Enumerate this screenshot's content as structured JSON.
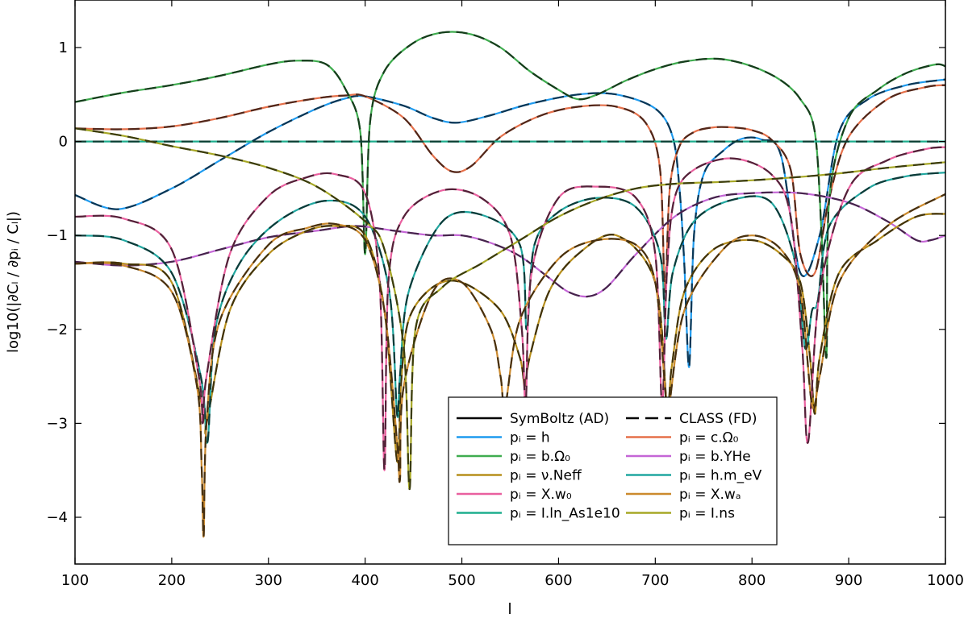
{
  "chart_data": {
    "type": "line",
    "title": "",
    "xlabel": "l",
    "ylabel": "log10(|∂Cₗ / ∂pᵢ / Cₗ|)",
    "xlim": [
      100,
      1000
    ],
    "ylim": [
      -4.5,
      1.5
    ],
    "xticks": [
      100,
      200,
      300,
      400,
      500,
      600,
      700,
      800,
      900,
      1000
    ],
    "yticks": [
      1,
      0,
      -1,
      -2,
      -3,
      -4
    ],
    "ytick_labels": [
      "1",
      "0",
      "−1",
      "−2",
      "−3",
      "−4"
    ],
    "grid": false,
    "legend_position": "lower right",
    "legend": {
      "styles": [
        {
          "label": "SymBoltz (AD)",
          "linestyle": "solid",
          "color": "#000000"
        },
        {
          "label": "CLASS (FD)",
          "linestyle": "dashed",
          "color": "#000000"
        }
      ],
      "entries": [
        {
          "label": "pᵢ = h",
          "color": "#1f9bef"
        },
        {
          "label": "pᵢ = c.Ω₀",
          "color": "#e5704a"
        },
        {
          "label": "pᵢ = b.Ω₀",
          "color": "#3fac4f"
        },
        {
          "label": "pᵢ = b.YHe",
          "color": "#c466d6"
        },
        {
          "label": "pᵢ = ν.Neff",
          "color": "#b78f1c"
        },
        {
          "label": "pᵢ = h.m_eV",
          "color": "#21a7a0"
        },
        {
          "label": "pᵢ = X.w₀",
          "color": "#e9609f"
        },
        {
          "label": "pᵢ = X.wₐ",
          "color": "#cc8a2e"
        },
        {
          "label": "pᵢ = I.ln_As1e10",
          "color": "#1eae8e"
        },
        {
          "label": "pᵢ = I.ns",
          "color": "#a7a826"
        }
      ]
    },
    "series": [
      {
        "name": "pᵢ = h",
        "color": "#1f9bef",
        "x": [
          100,
          145,
          200,
          250,
          300,
          350,
          380,
          400,
          440,
          470,
          495,
          530,
          570,
          620,
          660,
          700,
          718,
          725,
          730,
          735,
          740,
          750,
          770,
          790,
          810,
          830,
          850,
          870,
          890,
          920,
          960,
          1000
        ],
        "y": [
          -0.57,
          -0.72,
          -0.5,
          -0.2,
          0.1,
          0.35,
          0.46,
          0.48,
          0.38,
          0.25,
          0.2,
          0.28,
          0.4,
          0.5,
          0.5,
          0.35,
          0.05,
          -0.5,
          -1.3,
          -2.4,
          -1.0,
          -0.35,
          -0.1,
          0.03,
          0.02,
          -0.15,
          -1.4,
          -1.0,
          0.1,
          0.45,
          0.6,
          0.66
        ]
      },
      {
        "name": "pᵢ = c.Ω₀",
        "color": "#e5704a",
        "x": [
          100,
          150,
          200,
          250,
          300,
          350,
          380,
          400,
          440,
          470,
          490,
          510,
          540,
          580,
          620,
          660,
          690,
          705,
          710,
          715,
          725,
          740,
          760,
          780,
          800,
          820,
          840,
          850,
          865,
          880,
          900,
          940,
          980,
          1000
        ],
        "y": [
          0.14,
          0.13,
          0.16,
          0.25,
          0.37,
          0.46,
          0.49,
          0.48,
          0.25,
          -0.15,
          -0.32,
          -0.26,
          0.05,
          0.27,
          0.37,
          0.37,
          0.2,
          -0.3,
          -1.6,
          -0.5,
          -0.05,
          0.1,
          0.15,
          0.15,
          0.12,
          0.02,
          -0.3,
          -1.2,
          -1.4,
          -0.6,
          0.05,
          0.45,
          0.58,
          0.6
        ]
      },
      {
        "name": "pᵢ = b.Ω₀",
        "color": "#3fac4f",
        "x": [
          100,
          150,
          200,
          250,
          300,
          330,
          360,
          380,
          395,
          400,
          405,
          420,
          450,
          480,
          510,
          540,
          570,
          600,
          620,
          640,
          670,
          700,
          730,
          765,
          800,
          830,
          850,
          865,
          872,
          877,
          880,
          900,
          930,
          960,
          990,
          1000
        ],
        "y": [
          0.42,
          0.52,
          0.6,
          0.7,
          0.82,
          0.86,
          0.82,
          0.55,
          0.1,
          -1.2,
          0.2,
          0.75,
          1.05,
          1.16,
          1.14,
          1.0,
          0.75,
          0.55,
          0.45,
          0.5,
          0.65,
          0.77,
          0.85,
          0.88,
          0.8,
          0.65,
          0.45,
          0.1,
          -1.0,
          -2.3,
          -0.6,
          0.25,
          0.55,
          0.73,
          0.82,
          0.8
        ]
      },
      {
        "name": "pᵢ = b.YHe",
        "color": "#c466d6",
        "x": [
          100,
          150,
          200,
          250,
          300,
          350,
          390,
          430,
          470,
          500,
          530,
          560,
          590,
          610,
          630,
          650,
          680,
          720,
          760,
          800,
          850,
          900,
          940,
          970,
          985,
          1000
        ],
        "y": [
          -1.28,
          -1.32,
          -1.28,
          -1.15,
          -1.02,
          -0.95,
          -0.9,
          -0.95,
          -1.0,
          -1.0,
          -1.08,
          -1.22,
          -1.45,
          -1.6,
          -1.65,
          -1.55,
          -1.2,
          -0.8,
          -0.6,
          -0.55,
          -0.55,
          -0.65,
          -0.85,
          -1.05,
          -1.05,
          -1.0
        ]
      },
      {
        "name": "pᵢ = ν.Neff",
        "color": "#b78f1c",
        "x": [
          100,
          150,
          200,
          233,
          236,
          260,
          300,
          340,
          370,
          400,
          420,
          433,
          437,
          445,
          470,
          500,
          540,
          560,
          565,
          570,
          590,
          620,
          660,
          700,
          712,
          717,
          730,
          760,
          800,
          830,
          850,
          860,
          865,
          870,
          890,
          930,
          970,
          1000
        ],
        "y": [
          -1.3,
          -1.3,
          -1.5,
          -2.9,
          -3.0,
          -1.8,
          -1.2,
          -0.95,
          -0.9,
          -1.0,
          -1.8,
          -3.4,
          -2.6,
          -1.9,
          -1.55,
          -1.5,
          -1.8,
          -2.3,
          -2.6,
          -2.3,
          -1.6,
          -1.2,
          -1.0,
          -1.5,
          -2.8,
          -2.4,
          -1.6,
          -1.15,
          -1.05,
          -1.2,
          -1.5,
          -2.3,
          -2.9,
          -2.3,
          -1.4,
          -1.05,
          -0.8,
          -0.77
        ]
      },
      {
        "name": "pᵢ = h.m_eV",
        "color": "#21a7a0",
        "x": [
          100,
          150,
          200,
          230,
          237,
          245,
          270,
          310,
          360,
          400,
          425,
          433,
          436,
          445,
          480,
          520,
          560,
          567,
          575,
          600,
          640,
          680,
          705,
          711,
          718,
          740,
          780,
          820,
          845,
          855,
          862,
          868,
          880,
          920,
          960,
          1000
        ],
        "y": [
          -1.0,
          -1.05,
          -1.4,
          -2.5,
          -3.2,
          -2.0,
          -1.3,
          -0.85,
          -0.63,
          -0.8,
          -1.6,
          -2.9,
          -2.5,
          -1.6,
          -0.85,
          -0.78,
          -1.1,
          -2.0,
          -1.1,
          -0.75,
          -0.6,
          -0.7,
          -1.2,
          -2.1,
          -1.4,
          -0.85,
          -0.62,
          -0.65,
          -1.3,
          -2.2,
          -1.8,
          -1.7,
          -0.9,
          -0.5,
          -0.37,
          -0.33
        ]
      },
      {
        "name": "pᵢ = X.w₀",
        "color": "#e9609f",
        "x": [
          100,
          150,
          200,
          228,
          232,
          236,
          260,
          300,
          340,
          370,
          400,
          415,
          420,
          424,
          440,
          480,
          520,
          550,
          562,
          566,
          572,
          600,
          640,
          680,
          700,
          707,
          712,
          720,
          740,
          780,
          820,
          840,
          852,
          858,
          870,
          900,
          940,
          980,
          1000
        ],
        "y": [
          -0.8,
          -0.82,
          -1.15,
          -2.5,
          -3.0,
          -2.5,
          -1.2,
          -0.58,
          -0.38,
          -0.35,
          -0.55,
          -1.5,
          -3.5,
          -1.5,
          -0.8,
          -0.52,
          -0.6,
          -1.0,
          -2.0,
          -2.8,
          -1.4,
          -0.6,
          -0.48,
          -0.6,
          -1.2,
          -2.8,
          -1.4,
          -0.6,
          -0.3,
          -0.18,
          -0.35,
          -0.8,
          -2.2,
          -3.2,
          -1.6,
          -0.5,
          -0.2,
          -0.08,
          -0.06
        ]
      },
      {
        "name": "pᵢ = X.wₐ",
        "color": "#cc8a2e",
        "x": [
          100,
          150,
          200,
          226,
          231,
          233,
          236,
          250,
          300,
          340,
          370,
          400,
          420,
          433,
          436,
          440,
          470,
          500,
          530,
          540,
          545,
          560,
          600,
          640,
          680,
          700,
          710,
          713,
          730,
          770,
          800,
          830,
          850,
          862,
          870,
          890,
          940,
          1000
        ],
        "y": [
          -1.3,
          -1.32,
          -1.6,
          -2.6,
          -3.5,
          -4.2,
          -3.0,
          -1.9,
          -1.1,
          -0.92,
          -0.88,
          -1.05,
          -1.8,
          -3.2,
          -3.6,
          -2.6,
          -1.6,
          -1.5,
          -2.0,
          -2.5,
          -2.8,
          -1.9,
          -1.25,
          -1.05,
          -1.1,
          -1.5,
          -2.6,
          -2.9,
          -1.8,
          -1.15,
          -1.0,
          -1.15,
          -1.6,
          -2.8,
          -2.5,
          -1.5,
          -0.9,
          -0.56
        ]
      },
      {
        "name": "pᵢ = I.ln_As1e10",
        "color": "#1eae8e",
        "x": [
          100,
          1000
        ],
        "y": [
          0.0,
          0.0
        ]
      },
      {
        "name": "pᵢ = I.ns",
        "color": "#a7a826",
        "x": [
          100,
          150,
          200,
          250,
          300,
          350,
          400,
          420,
          440,
          446,
          452,
          480,
          520,
          560,
          600,
          640,
          680,
          720,
          770,
          820,
          880,
          940,
          1000
        ],
        "y": [
          0.14,
          0.06,
          -0.05,
          -0.15,
          -0.28,
          -0.48,
          -0.85,
          -1.15,
          -2.2,
          -3.7,
          -2.0,
          -1.55,
          -1.3,
          -1.05,
          -0.8,
          -0.62,
          -0.5,
          -0.45,
          -0.43,
          -0.4,
          -0.35,
          -0.28,
          -0.22
        ]
      }
    ]
  }
}
